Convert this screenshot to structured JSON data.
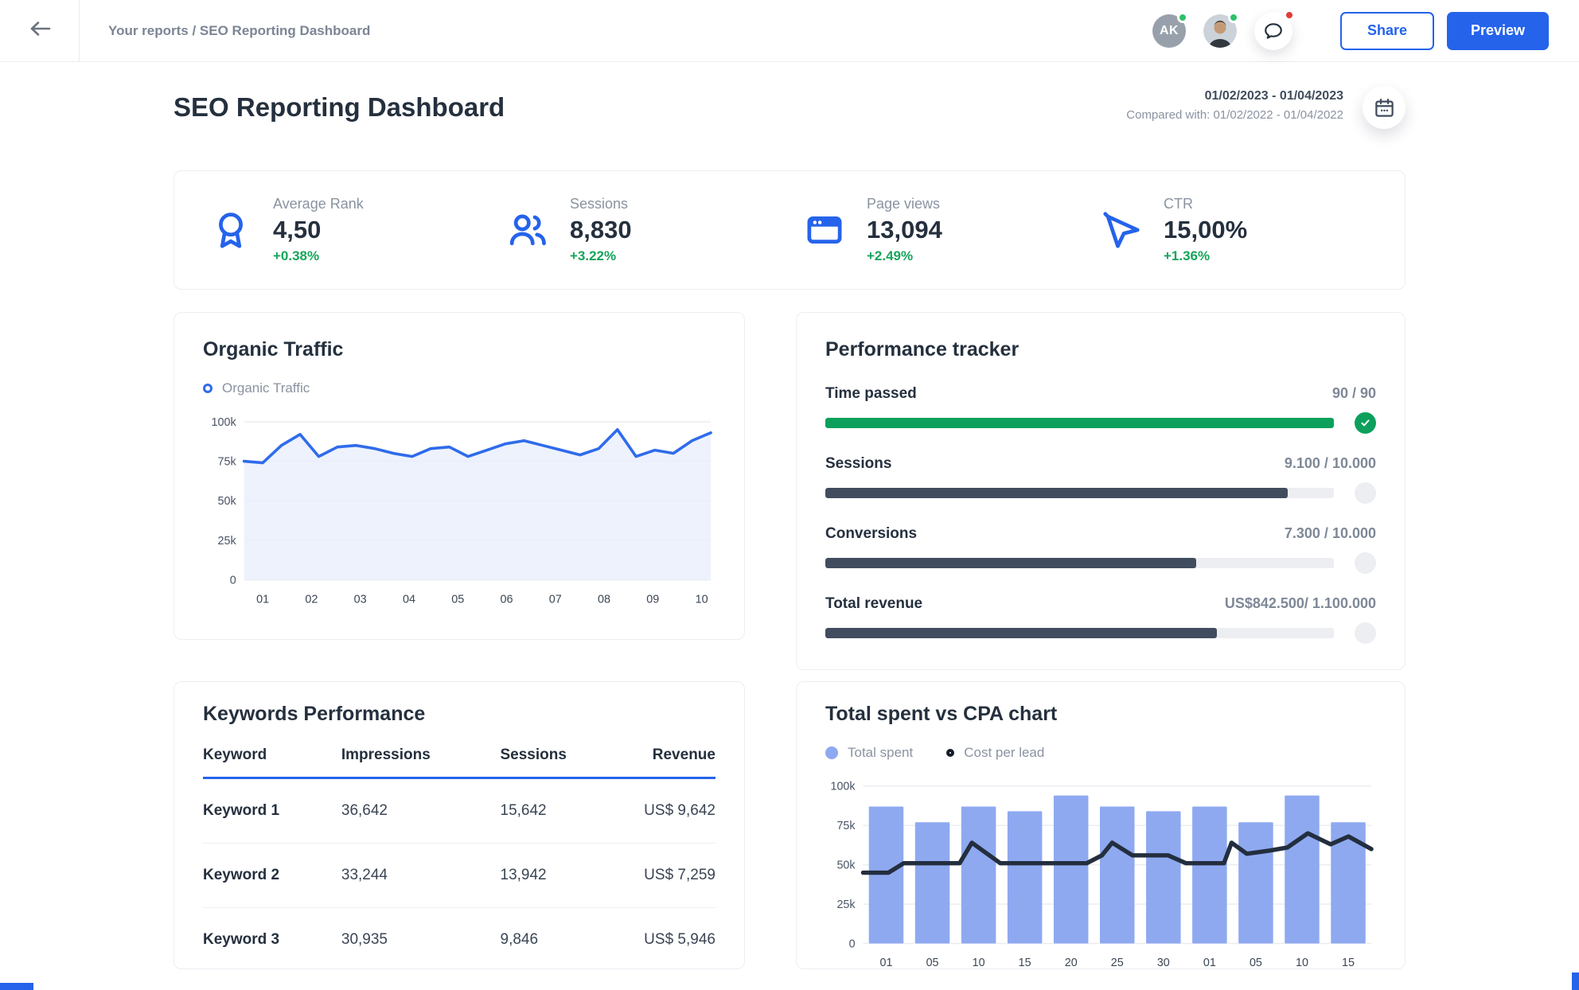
{
  "header": {
    "breadcrumb": "Your reports / SEO Reporting Dashboard",
    "avatar_initials": "AK",
    "share_label": "Share",
    "preview_label": "Preview"
  },
  "title_bar": {
    "title": "SEO Reporting Dashboard",
    "date_range": "01/02/2023 - 01/04/2023",
    "compared_with": "Compared with: 01/02/2022 - 01/04/2022"
  },
  "kpis": [
    {
      "icon": "award-icon",
      "label": "Average Rank",
      "value": "4,50",
      "delta": "+0.38%"
    },
    {
      "icon": "users-icon",
      "label": "Sessions",
      "value": "8,830",
      "delta": "+3.22%"
    },
    {
      "icon": "browser-icon",
      "label": "Page views",
      "value": "13,094",
      "delta": "+2.49%"
    },
    {
      "icon": "cursor-icon",
      "label": "CTR",
      "value": "15,00%",
      "delta": "+1.36%"
    }
  ],
  "tracker": {
    "title": "Performance tracker",
    "rows": [
      {
        "label": "Time passed",
        "value": "90 / 90",
        "pct": 100,
        "bar_color": "green",
        "complete": true
      },
      {
        "label": "Sessions",
        "value": "9.100 / 10.000",
        "pct": 91,
        "bar_color": "dark",
        "complete": false
      },
      {
        "label": "Conversions",
        "value": "7.300 / 10.000",
        "pct": 73,
        "bar_color": "dark",
        "complete": false
      },
      {
        "label": "Total revenue",
        "value": "US$842.500/ 1.100.000",
        "pct": 77,
        "bar_color": "dark",
        "complete": false
      }
    ]
  },
  "keywords": {
    "title": "Keywords Performance",
    "columns": [
      "Keyword",
      "Impressions",
      "Sessions",
      "Revenue"
    ],
    "rows": [
      [
        "Keyword 1",
        "36,642",
        "15,642",
        "US$ 9,642"
      ],
      [
        "Keyword 2",
        "33,244",
        "13,942",
        "US$ 7,259"
      ],
      [
        "Keyword 3",
        "30,935",
        "9,846",
        "US$ 5,946"
      ]
    ]
  },
  "chart_data": [
    {
      "id": "organic-traffic",
      "type": "area",
      "title": "Organic Traffic",
      "series_name": "Organic Traffic",
      "unit": "thousands of sessions",
      "ylim": [
        0,
        100
      ],
      "yticks": [
        {
          "label": "100k",
          "v": 100
        },
        {
          "label": "75k",
          "v": 75
        },
        {
          "label": "50k",
          "v": 50
        },
        {
          "label": "25k",
          "v": 25
        },
        {
          "label": "0",
          "v": 0
        }
      ],
      "x_labels": [
        "01",
        "02",
        "03",
        "04",
        "05",
        "06",
        "07",
        "08",
        "09",
        "10"
      ],
      "values": [
        75,
        74,
        85,
        92,
        78,
        84,
        85,
        83,
        80,
        78,
        83,
        84,
        78,
        82,
        86,
        88,
        85,
        82,
        79,
        83,
        95,
        78,
        82,
        80,
        88,
        93
      ],
      "grid": true,
      "legend_position": "top-left"
    },
    {
      "id": "total-spent-vs-cpa",
      "type": "bar+line",
      "title": "Total spent vs CPA chart",
      "unit": "thousands",
      "ylim": [
        0,
        100
      ],
      "yticks": [
        {
          "label": "100k",
          "v": 100
        },
        {
          "label": "75k",
          "v": 75
        },
        {
          "label": "50k",
          "v": 50
        },
        {
          "label": "25k",
          "v": 25
        },
        {
          "label": "0",
          "v": 0
        }
      ],
      "categories": [
        "01",
        "05",
        "10",
        "15",
        "20",
        "25",
        "30",
        "01",
        "05",
        "10",
        "15"
      ],
      "series": [
        {
          "name": "Total spent",
          "type": "bar",
          "values": [
            87,
            77,
            87,
            84,
            94,
            87,
            84,
            87,
            77,
            94,
            77
          ]
        },
        {
          "name": "Cost per lead",
          "type": "line",
          "points": [
            [
              0,
              45
            ],
            [
              0.05,
              45
            ],
            [
              0.08,
              51
            ],
            [
              0.19,
              51
            ],
            [
              0.214,
              64
            ],
            [
              0.27,
              51
            ],
            [
              0.44,
              51
            ],
            [
              0.47,
              56
            ],
            [
              0.49,
              64
            ],
            [
              0.53,
              56
            ],
            [
              0.6,
              56
            ],
            [
              0.635,
              51
            ],
            [
              0.71,
              51
            ],
            [
              0.725,
              64
            ],
            [
              0.755,
              57
            ],
            [
              0.8,
              59
            ],
            [
              0.835,
              61
            ],
            [
              0.875,
              70
            ],
            [
              0.92,
              63
            ],
            [
              0.955,
              68
            ],
            [
              1,
              60
            ]
          ]
        }
      ],
      "grid": true,
      "legend_position": "top-left"
    }
  ],
  "colors": {
    "primary_blue": "#2563EB",
    "line_blue": "#2F6BEB",
    "area_fill": "#E9EFFC",
    "bar_blue": "#8EA9F0",
    "cpa_line": "#232E3E",
    "delta_green": "#18A45C",
    "progress_green": "#0CA05C",
    "progress_dark": "#414D5E",
    "grid_line": "#E9EBF1",
    "axis_text": "#4A5565"
  }
}
